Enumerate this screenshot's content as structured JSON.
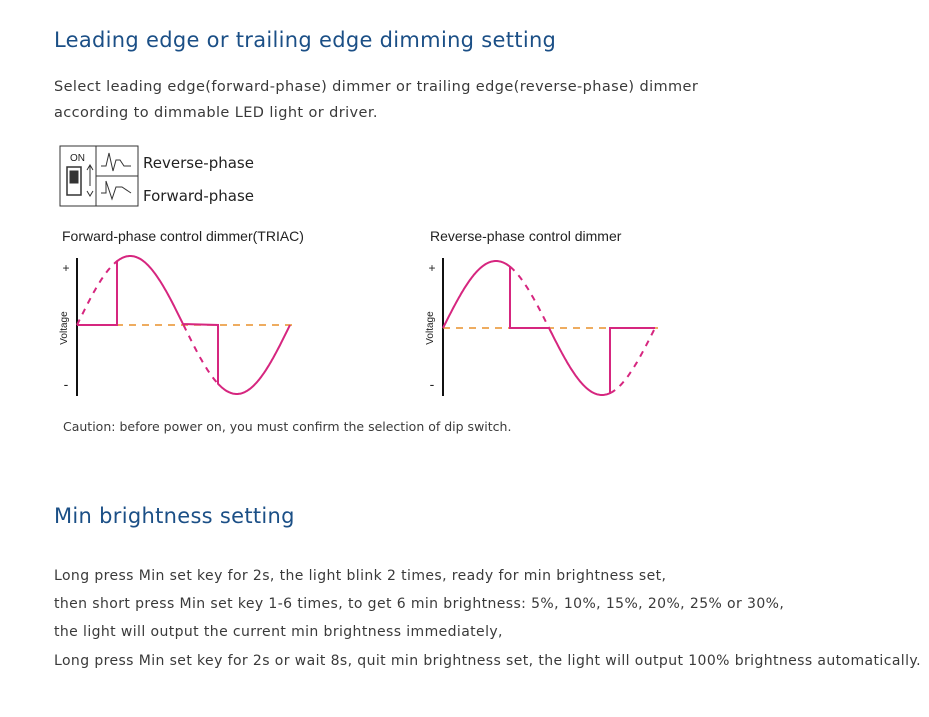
{
  "section1": {
    "title": "Leading edge or trailing edge dimming setting",
    "description": [
      "Select leading edge(forward-phase) dimmer or trailing edge(reverse-phase) dimmer",
      "according to dimmable LED light or driver."
    ],
    "dip_switch": {
      "on_label": "ON",
      "options": [
        "Reverse-phase",
        "Forward-phase"
      ]
    },
    "diagrams": [
      {
        "title": "Forward-phase control dimmer(TRIAC)",
        "y_label": "Voltage",
        "plus": "+",
        "minus": "-"
      },
      {
        "title": "Reverse-phase control dimmer",
        "y_label": "Voltage",
        "plus": "+",
        "minus": "-"
      }
    ],
    "caution": "Caution: before power on, you must confirm the selection of dip switch."
  },
  "section2": {
    "title": "Min brightness setting",
    "lines": [
      "Long press Min set key for 2s, the light blink 2 times, ready for min brightness set,",
      "then short press Min set key 1-6 times, to get 6 min brightness: 5%, 10%, 15%,  20%, 25% or 30%,",
      "the light will output the current min brightness immediately,",
      "Long press Min set key for 2s or wait 8s, quit min brightness set, the light will output 100% brightness automatically."
    ]
  }
}
